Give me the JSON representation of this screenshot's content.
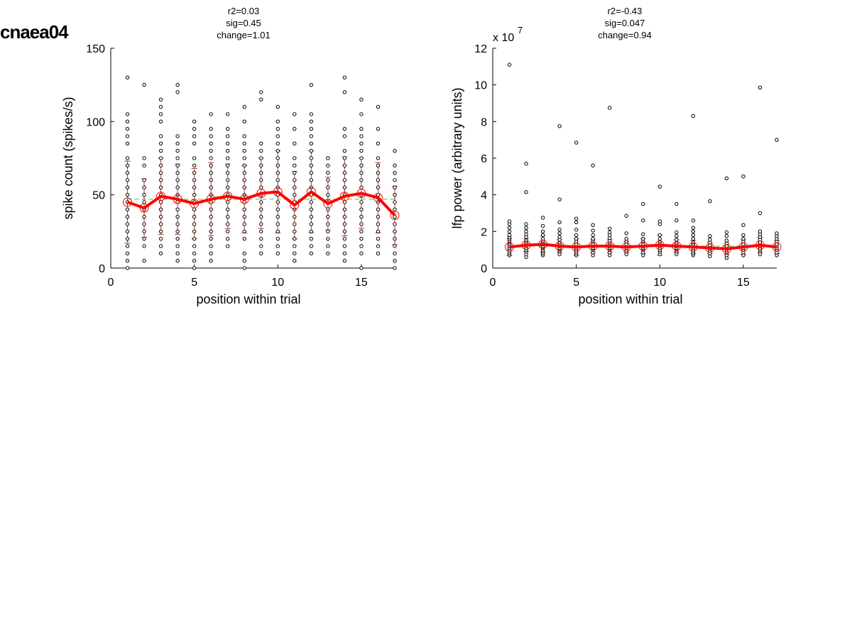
{
  "figure_title": "cnaea04",
  "chart_data": [
    {
      "type": "scatter",
      "stats": [
        "r2=0.03",
        "sig=0.45",
        "change=1.01"
      ],
      "xlabel": "position within trial",
      "ylabel": "spike count (spikes/s)",
      "exponent_label": "",
      "xlim": [
        0,
        17
      ],
      "ylim": [
        0,
        150
      ],
      "xticks": [
        "0",
        "5",
        "10",
        "15"
      ],
      "xtick_values": [
        0,
        5,
        10,
        15
      ],
      "yticks": [
        "0",
        "50",
        "100",
        "150"
      ],
      "ytick_values": [
        0,
        50,
        100,
        150
      ],
      "reference_line": 47,
      "colors": {
        "points": "#000000",
        "mean": "#ff0000",
        "errorbar": "#c0392b",
        "reference": "#33cc33"
      },
      "mean": [
        45,
        41,
        49,
        47,
        44,
        47,
        49,
        47,
        51,
        52,
        43,
        52,
        44,
        49,
        51,
        48,
        36
      ],
      "std": [
        28,
        20,
        26,
        24,
        24,
        25,
        22,
        23,
        24,
        28,
        23,
        28,
        18,
        27,
        24,
        24,
        20
      ],
      "points": [
        [
          0,
          5,
          10,
          15,
          20,
          25,
          30,
          35,
          40,
          45,
          50,
          55,
          60,
          65,
          70,
          75,
          85,
          90,
          95,
          100,
          105,
          130
        ],
        [
          5,
          15,
          20,
          25,
          30,
          35,
          40,
          45,
          50,
          55,
          60,
          70,
          75,
          125
        ],
        [
          10,
          15,
          20,
          25,
          30,
          35,
          40,
          45,
          50,
          55,
          60,
          65,
          70,
          75,
          80,
          85,
          90,
          100,
          105,
          110,
          115
        ],
        [
          5,
          10,
          15,
          20,
          25,
          30,
          35,
          40,
          45,
          50,
          55,
          60,
          65,
          70,
          75,
          80,
          85,
          90,
          120,
          125
        ],
        [
          0,
          5,
          10,
          15,
          20,
          25,
          30,
          35,
          40,
          45,
          50,
          55,
          60,
          65,
          70,
          75,
          85,
          90,
          95,
          100
        ],
        [
          5,
          10,
          15,
          20,
          25,
          30,
          35,
          40,
          45,
          50,
          55,
          60,
          65,
          70,
          75,
          80,
          85,
          90,
          95,
          105
        ],
        [
          15,
          20,
          25,
          30,
          35,
          40,
          45,
          50,
          55,
          60,
          65,
          70,
          75,
          80,
          85,
          90,
          95,
          105
        ],
        [
          0,
          5,
          10,
          20,
          25,
          30,
          35,
          40,
          45,
          50,
          55,
          60,
          65,
          70,
          75,
          80,
          85,
          90,
          100,
          110
        ],
        [
          10,
          15,
          20,
          25,
          30,
          35,
          40,
          45,
          50,
          55,
          60,
          65,
          70,
          75,
          80,
          85,
          115,
          120
        ],
        [
          10,
          15,
          20,
          25,
          30,
          35,
          40,
          45,
          50,
          55,
          60,
          65,
          70,
          75,
          80,
          85,
          90,
          95,
          100,
          110
        ],
        [
          5,
          10,
          15,
          20,
          25,
          30,
          35,
          40,
          45,
          50,
          55,
          60,
          65,
          70,
          75,
          85,
          95,
          105
        ],
        [
          10,
          15,
          20,
          25,
          30,
          35,
          40,
          45,
          50,
          55,
          60,
          65,
          70,
          75,
          80,
          85,
          90,
          95,
          100,
          105,
          125
        ],
        [
          10,
          15,
          20,
          25,
          30,
          35,
          40,
          45,
          50,
          55,
          60,
          65,
          70,
          75
        ],
        [
          5,
          10,
          15,
          20,
          25,
          30,
          35,
          40,
          45,
          50,
          55,
          60,
          65,
          70,
          75,
          80,
          90,
          95,
          120,
          130
        ],
        [
          0,
          10,
          15,
          20,
          25,
          30,
          35,
          40,
          45,
          50,
          55,
          60,
          65,
          70,
          75,
          80,
          85,
          90,
          95,
          105,
          115
        ],
        [
          10,
          15,
          20,
          25,
          30,
          35,
          40,
          45,
          50,
          55,
          60,
          65,
          70,
          75,
          85,
          95,
          110
        ],
        [
          0,
          5,
          10,
          15,
          20,
          25,
          30,
          35,
          40,
          45,
          50,
          55,
          60,
          65,
          70,
          80
        ]
      ]
    },
    {
      "type": "scatter",
      "stats": [
        "r2=-0.43",
        "sig=0.047",
        "change=0.94"
      ],
      "xlabel": "position within trial",
      "ylabel": "lfp power (arbitrary units)",
      "exponent_label": "x 10",
      "exponent_value": "7",
      "xlim": [
        0,
        17
      ],
      "ylim": [
        0,
        12
      ],
      "xticks": [
        "0",
        "5",
        "10",
        "15"
      ],
      "xtick_values": [
        0,
        5,
        10,
        15
      ],
      "yticks": [
        "0",
        "2",
        "4",
        "6",
        "8",
        "10",
        "12"
      ],
      "ytick_values": [
        0,
        2,
        4,
        6,
        8,
        10,
        12
      ],
      "reference_line": 1.2,
      "colors": {
        "points": "#000000",
        "mean": "#ff0000",
        "errorbar": "#c0392b",
        "reference": "#33cc33"
      },
      "mean": [
        1.15,
        1.25,
        1.3,
        1.2,
        1.15,
        1.2,
        1.2,
        1.15,
        1.2,
        1.25,
        1.2,
        1.15,
        1.1,
        1.05,
        1.15,
        1.25,
        1.15
      ],
      "std": [
        0.45,
        0.35,
        0.45,
        0.35,
        0.45,
        0.35,
        0.35,
        0.3,
        0.4,
        0.55,
        0.35,
        0.35,
        0.3,
        0.3,
        0.4,
        0.4,
        0.35
      ],
      "points": [
        [
          0.7,
          0.8,
          0.9,
          1.0,
          1.1,
          1.2,
          1.3,
          1.4,
          1.5,
          1.6,
          1.7,
          1.8,
          2.0,
          2.2,
          2.4,
          2.55,
          11.1
        ],
        [
          0.6,
          0.75,
          0.9,
          1.0,
          1.1,
          1.2,
          1.3,
          1.4,
          1.5,
          1.7,
          1.85,
          2.0,
          2.2,
          2.4,
          4.15,
          5.7
        ],
        [
          0.7,
          0.8,
          0.9,
          1.0,
          1.1,
          1.2,
          1.3,
          1.4,
          1.5,
          1.6,
          1.8,
          2.0,
          2.3,
          2.75
        ],
        [
          0.75,
          0.9,
          1.0,
          1.1,
          1.2,
          1.3,
          1.4,
          1.55,
          1.7,
          1.9,
          2.1,
          2.5,
          3.75,
          7.75
        ],
        [
          0.7,
          0.8,
          0.9,
          1.0,
          1.1,
          1.2,
          1.3,
          1.45,
          1.6,
          1.8,
          2.1,
          2.5,
          2.7,
          6.85
        ],
        [
          0.7,
          0.85,
          1.0,
          1.1,
          1.2,
          1.3,
          1.45,
          1.6,
          1.8,
          2.05,
          2.35,
          5.6
        ],
        [
          0.7,
          0.85,
          1.0,
          1.1,
          1.2,
          1.3,
          1.4,
          1.5,
          1.65,
          1.8,
          1.95,
          2.15,
          8.75
        ],
        [
          0.75,
          0.9,
          1.0,
          1.1,
          1.2,
          1.3,
          1.45,
          1.6,
          1.9,
          2.85
        ],
        [
          0.7,
          0.85,
          1.0,
          1.1,
          1.2,
          1.3,
          1.45,
          1.6,
          1.85,
          2.6,
          3.5
        ],
        [
          0.75,
          0.9,
          1.0,
          1.1,
          1.2,
          1.3,
          1.45,
          1.6,
          1.8,
          2.4,
          2.55,
          4.45
        ],
        [
          0.75,
          0.9,
          1.0,
          1.1,
          1.2,
          1.3,
          1.4,
          1.55,
          1.75,
          1.95,
          2.6,
          3.5
        ],
        [
          0.7,
          0.8,
          0.9,
          1.0,
          1.1,
          1.2,
          1.3,
          1.4,
          1.6,
          1.8,
          2.0,
          2.2,
          2.6,
          8.3
        ],
        [
          0.65,
          0.8,
          0.95,
          1.05,
          1.15,
          1.25,
          1.4,
          1.55,
          1.75,
          3.65
        ],
        [
          0.55,
          0.7,
          0.85,
          1.0,
          1.1,
          1.2,
          1.35,
          1.5,
          1.75,
          1.95,
          4.9
        ],
        [
          0.7,
          0.85,
          1.0,
          1.1,
          1.2,
          1.3,
          1.45,
          1.6,
          1.8,
          2.35,
          5.0
        ],
        [
          0.75,
          0.9,
          1.0,
          1.1,
          1.2,
          1.3,
          1.4,
          1.55,
          1.7,
          1.85,
          2.0,
          3.0,
          9.85
        ],
        [
          0.7,
          0.85,
          1.0,
          1.1,
          1.2,
          1.3,
          1.45,
          1.6,
          1.75,
          1.9,
          7.0
        ]
      ]
    }
  ]
}
